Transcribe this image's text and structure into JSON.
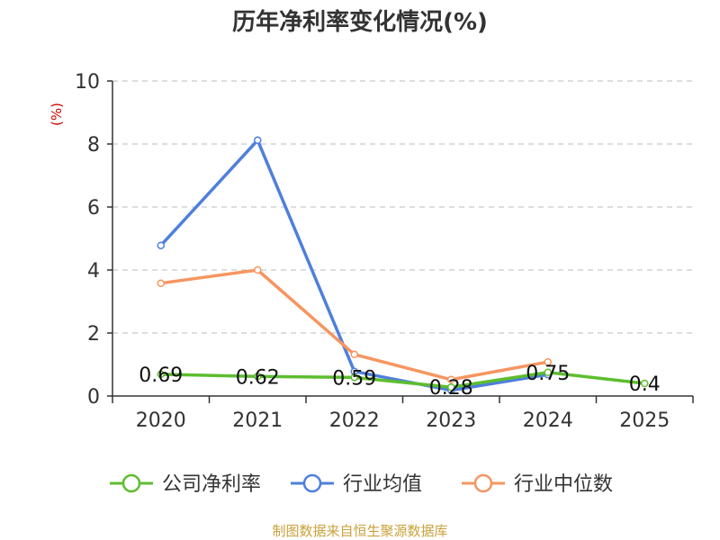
{
  "chart_data": {
    "type": "line",
    "title": "历年净利率变化情况(%)",
    "ylabel": "(%)",
    "ylim": [
      0,
      10
    ],
    "yticks": [
      0,
      2,
      4,
      6,
      8,
      10
    ],
    "categories": [
      "2020",
      "2021",
      "2022",
      "2023",
      "2024",
      "2025"
    ],
    "grid": true,
    "legend_position": "bottom",
    "series": [
      {
        "name": "公司净利率",
        "values": [
          0.69,
          0.62,
          0.59,
          0.28,
          0.75,
          0.4
        ],
        "labels": [
          "0.69",
          "0.62",
          "0.59",
          "0.28",
          "0.75",
          "0.4"
        ],
        "color": "#5dbd2f"
      },
      {
        "name": "行业均值",
        "values": [
          4.78,
          8.12,
          0.78,
          0.18,
          0.68,
          null
        ],
        "color": "#4e7fdc"
      },
      {
        "name": "行业中位数",
        "values": [
          3.58,
          4.0,
          1.32,
          0.52,
          1.08,
          null
        ],
        "color": "#f69560"
      }
    ]
  },
  "source_text": "制图数据来自恒生聚源数据库",
  "colors": {
    "axis": "#333333",
    "grid": "#bbbbbb",
    "unit_label": "#cc0000",
    "source": "#c9a13b"
  }
}
